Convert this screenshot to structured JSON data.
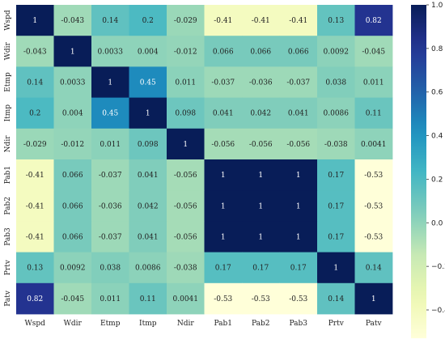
{
  "chart_data": {
    "type": "heatmap",
    "title": "",
    "xlabel": "",
    "ylabel": "",
    "labels": [
      "Wspd",
      "Wdir",
      "Etmp",
      "Itmp",
      "Ndir",
      "Pab1",
      "Pab2",
      "Pab3",
      "Prtv",
      "Patv"
    ],
    "matrix": [
      [
        "1",
        "-0.043",
        "0.14",
        "0.2",
        "-0.029",
        "-0.41",
        "-0.41",
        "-0.41",
        "0.13",
        "0.82"
      ],
      [
        "-0.043",
        "1",
        "0.0033",
        "0.004",
        "-0.012",
        "0.066",
        "0.066",
        "0.066",
        "0.0092",
        "-0.045"
      ],
      [
        "0.14",
        "0.0033",
        "1",
        "0.45",
        "0.011",
        "-0.037",
        "-0.036",
        "-0.037",
        "0.038",
        "0.011"
      ],
      [
        "0.2",
        "0.004",
        "0.45",
        "1",
        "0.098",
        "0.041",
        "0.042",
        "0.041",
        "0.0086",
        "0.11"
      ],
      [
        "-0.029",
        "-0.012",
        "0.011",
        "0.098",
        "1",
        "-0.056",
        "-0.056",
        "-0.056",
        "-0.038",
        "0.0041"
      ],
      [
        "-0.41",
        "0.066",
        "-0.037",
        "0.041",
        "-0.056",
        "1",
        "1",
        "1",
        "0.17",
        "-0.53"
      ],
      [
        "-0.41",
        "0.066",
        "-0.036",
        "0.042",
        "-0.056",
        "1",
        "1",
        "1",
        "0.17",
        "-0.53"
      ],
      [
        "-0.41",
        "0.066",
        "-0.037",
        "0.041",
        "-0.056",
        "1",
        "1",
        "1",
        "0.17",
        "-0.53"
      ],
      [
        "0.13",
        "0.0092",
        "0.038",
        "0.0086",
        "-0.038",
        "0.17",
        "0.17",
        "0.17",
        "1",
        "0.14"
      ],
      [
        "0.82",
        "-0.045",
        "0.011",
        "0.11",
        "0.0041",
        "-0.53",
        "-0.53",
        "-0.53",
        "0.14",
        "1"
      ]
    ],
    "vmin": -0.53,
    "vmax": 1,
    "colormap": "YlGnBu",
    "colorbar": {
      "ticks": [
        "1.0",
        "0.8",
        "0.6",
        "0.4",
        "0.2",
        "0.0",
        "−0.2",
        "−0.4"
      ],
      "tick_values": [
        1.0,
        0.8,
        0.6,
        0.4,
        0.2,
        0.0,
        -0.2,
        -0.4
      ]
    },
    "annot": true,
    "grid": false
  }
}
